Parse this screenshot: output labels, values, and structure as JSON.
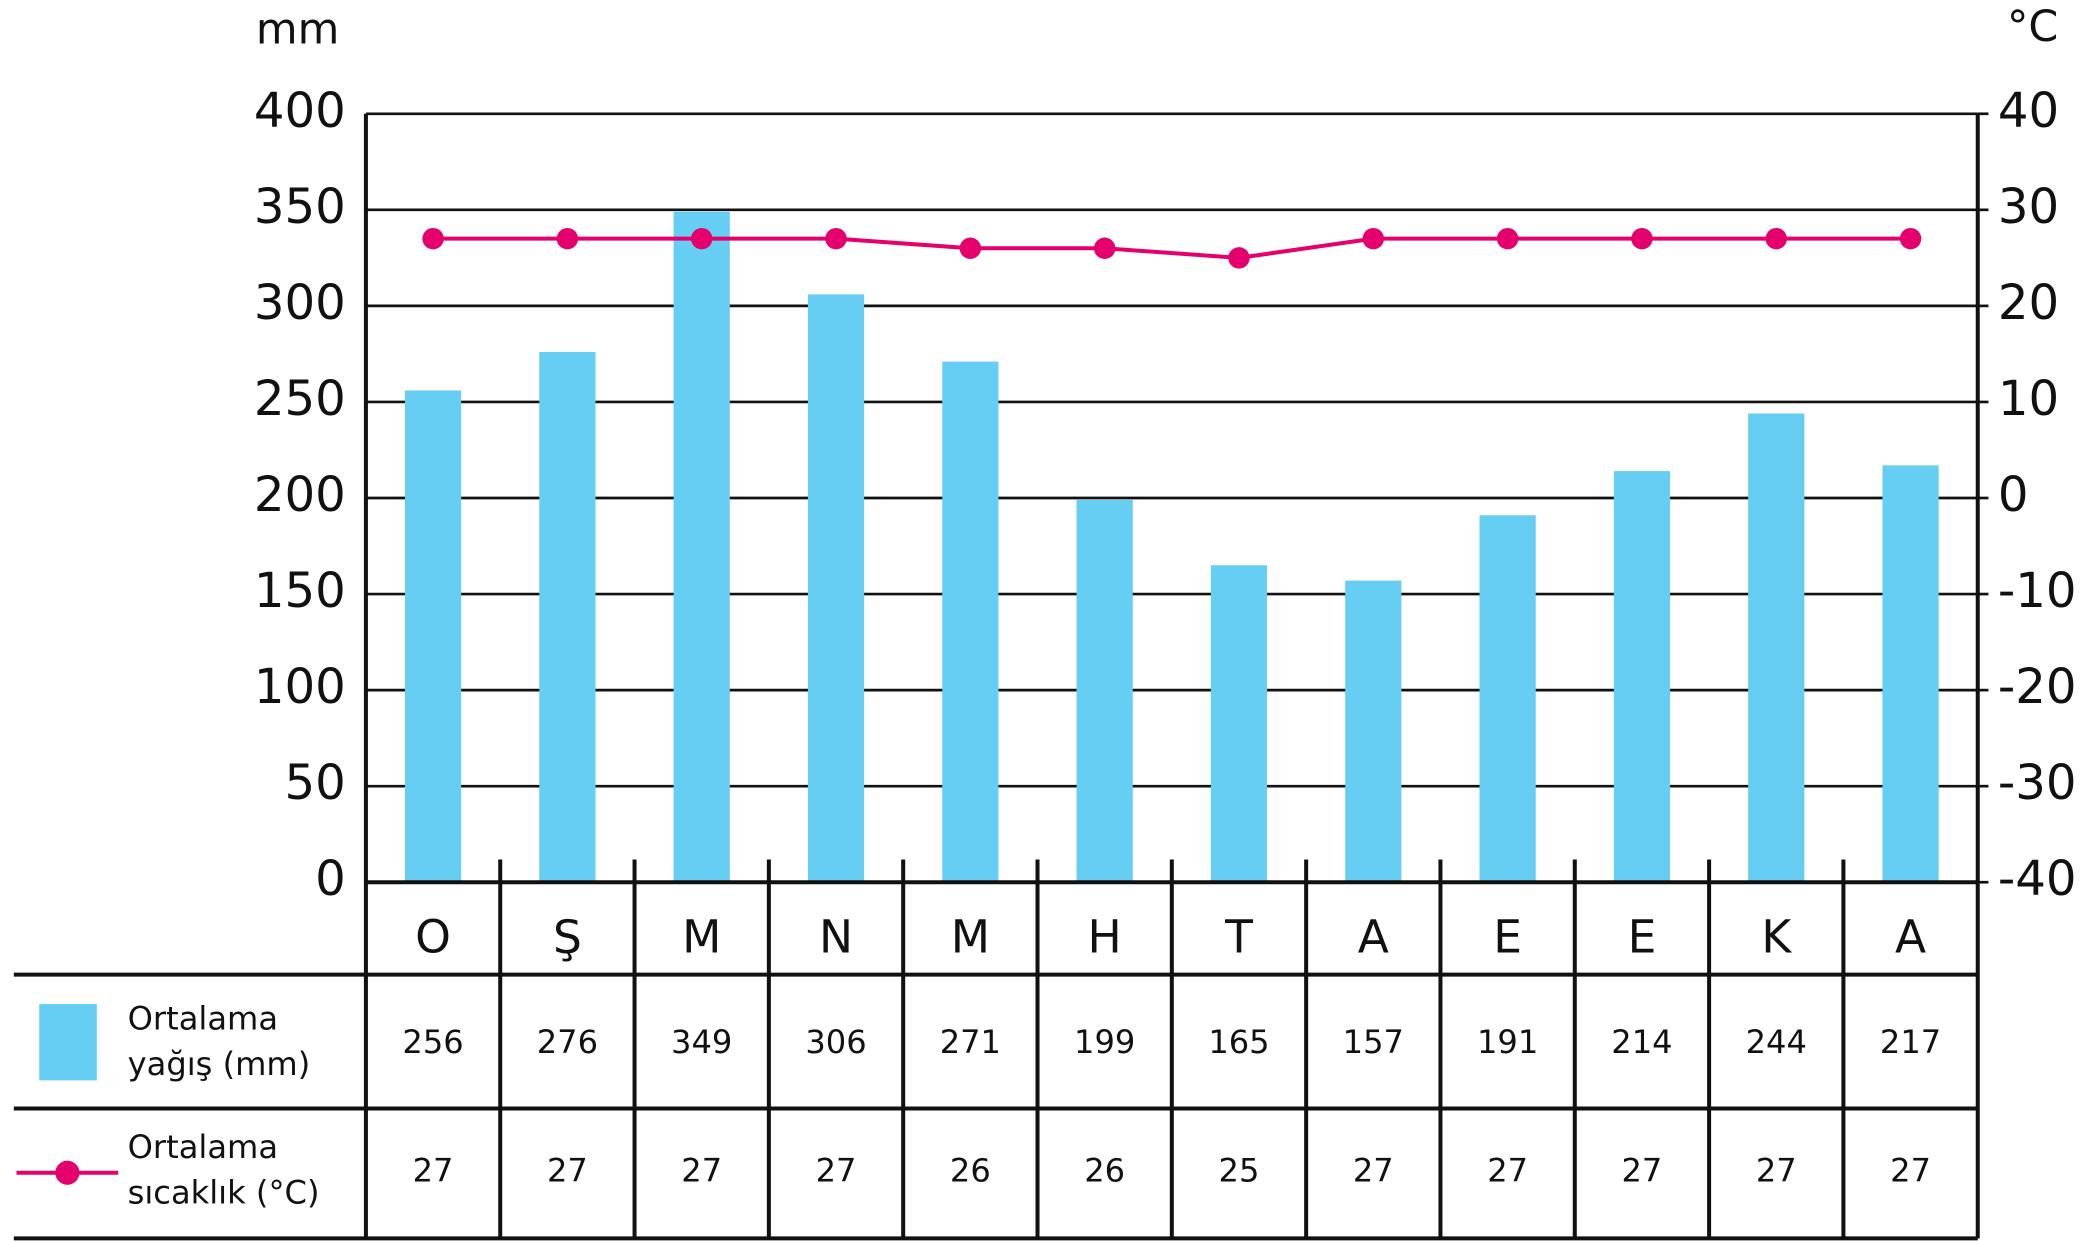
{
  "chart_data": {
    "type": "bar",
    "y_label": "mm",
    "y2_label": "°C",
    "categories": [
      "O",
      "Ş",
      "M",
      "N",
      "M",
      "H",
      "T",
      "A",
      "E",
      "E",
      "K",
      "A"
    ],
    "series": [
      {
        "name": "Ortalama yağış (mm)",
        "color": "#66cdf3",
        "values": [
          256,
          276,
          349,
          306,
          271,
          199,
          165,
          157,
          191,
          214,
          244,
          217
        ]
      },
      {
        "name": "Ortalama sıcaklık (°C)",
        "color": "#e5006d",
        "type": "line",
        "axis": "y2",
        "values": [
          27,
          27,
          27,
          27,
          26,
          26,
          25,
          27,
          27,
          27,
          27,
          27
        ]
      }
    ],
    "ylim": [
      0,
      400
    ],
    "yticks": [
      0,
      50,
      100,
      150,
      200,
      250,
      300,
      350,
      400
    ],
    "y2lim": [
      -40,
      40
    ],
    "y2ticks": [
      -40,
      -30,
      -20,
      -10,
      0,
      10,
      20,
      30,
      40
    ],
    "grid": true
  }
}
